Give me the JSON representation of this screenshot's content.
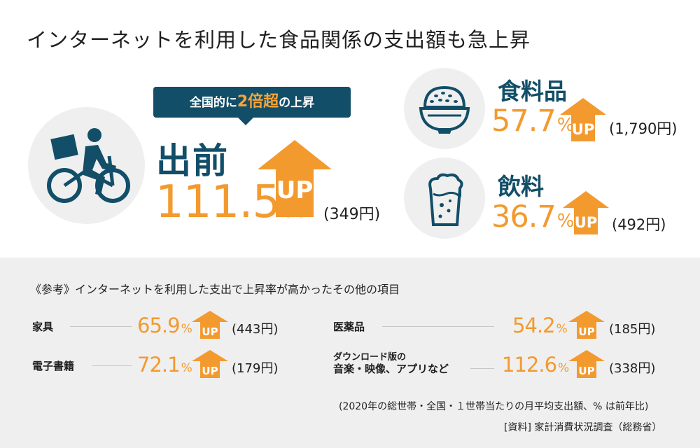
{
  "title": "インターネットを利用した食品関係の支出額も急上昇",
  "bubble": {
    "prefix": "全国的に",
    "highlight": "2倍超",
    "suffix": "の上昇"
  },
  "up_label": "UP",
  "featured": [
    {
      "label": "出前",
      "value": "111.5",
      "unit": "%",
      "amount": "(349円)",
      "icon": "delivery-bicycle-icon"
    },
    {
      "label": "食料品",
      "value": "57.7",
      "unit": "%",
      "amount": "(1,790円)",
      "icon": "rice-bowl-icon"
    },
    {
      "label": "飲料",
      "value": "36.7",
      "unit": "%",
      "amount": "(492円)",
      "icon": "beer-glass-icon"
    }
  ],
  "reference_title": "《参考》インターネットを利用した支出で上昇率が高かったその他の項目",
  "others": [
    {
      "label": "家具",
      "value": "65.9",
      "unit": "%",
      "amount": "(443円)"
    },
    {
      "label": "電子書籍",
      "value": "72.1",
      "unit": "%",
      "amount": "(179円)"
    },
    {
      "label": "医薬品",
      "value": "54.2",
      "unit": "%",
      "amount": "(185円)"
    },
    {
      "label_line1": "ダウンロード版の",
      "label_line2": "音楽・映像、アプリなど",
      "value": "112.6",
      "unit": "%",
      "amount": "(338円)"
    }
  ],
  "note": "(2020年の総世帯・全国・１世帯当たりの月平均支出額、% は前年比)",
  "source": "[資料] 家計消費状況調査（総務省）",
  "colors": {
    "navy": "#124e68",
    "orange": "#f39a2f",
    "panel": "#efefef"
  }
}
